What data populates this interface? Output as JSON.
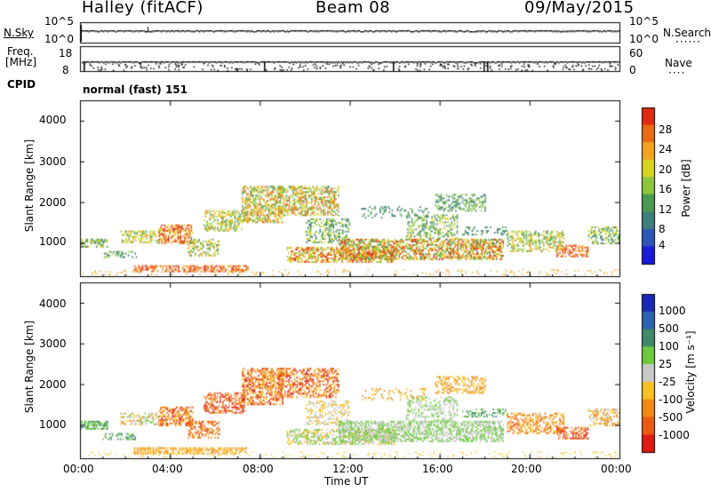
{
  "header": {
    "radar": "Halley (fitACF)",
    "beam": "Beam 08",
    "date": "09/May/2015"
  },
  "strip_panels": {
    "noise": {
      "left_label": "N.Sky",
      "right_label": "N.Search",
      "left_ticks": [
        "10^5",
        "10^0"
      ],
      "right_ticks": [
        "10^5",
        "10^0"
      ]
    },
    "freq": {
      "left_label": "Freq.",
      "left_unit": "[MHz]",
      "right_label": "Nave",
      "left_ticks": [
        "18",
        "8"
      ],
      "right_ticks": [
        "60",
        "0"
      ]
    },
    "cpid": {
      "label": "CPID",
      "value": "normal (fast) 151"
    }
  },
  "chart_data": [
    {
      "type": "heatmap",
      "name": "power",
      "ylabel": "Slant Range [km]",
      "yticks": [
        "4000",
        "3000",
        "2000",
        "1000"
      ],
      "ylim": [
        180,
        4500
      ],
      "colorbar_label": "Power [dB]",
      "colorbar_ticks": [
        "28",
        "24",
        "20",
        "16",
        "12",
        "8",
        "4"
      ],
      "colorscale": [
        "#1a1adc",
        "#2c56b8",
        "#3e7e7c",
        "#4a9a52",
        "#8cc63c",
        "#d8d51f",
        "#f2a21c",
        "#ec6a14",
        "#e12a12"
      ]
    },
    {
      "type": "heatmap",
      "name": "velocity",
      "ylabel": "Slant Range [km]",
      "yticks": [
        "4000",
        "3000",
        "2000",
        "1000"
      ],
      "ylim": [
        180,
        4500
      ],
      "colorbar_label": "Velocity [m s⁻¹]",
      "colorbar_ticks": [
        "1000",
        "500",
        "100",
        "25",
        "-25",
        "-100",
        "-500",
        "-1000"
      ],
      "colorscale": [
        "#1a2ab8",
        "#2c62b0",
        "#3e8a6a",
        "#6ccc3c",
        "#c8c8c8",
        "#f8c020",
        "#f08a14",
        "#ec5a12",
        "#e11a12"
      ],
      "xticks": [
        "00:00",
        "04:00",
        "08:00",
        "12:00",
        "16:00",
        "20:00",
        "00:00"
      ],
      "xlabel": "Time UT"
    }
  ]
}
